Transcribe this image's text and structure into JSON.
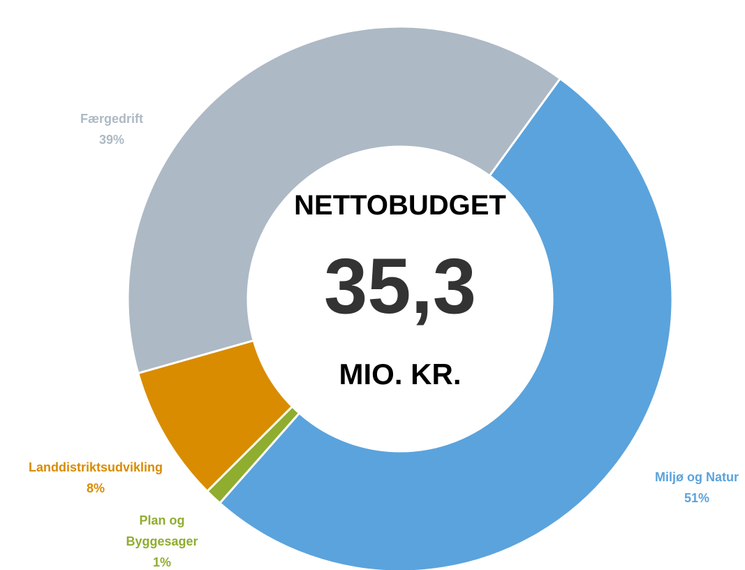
{
  "chart_data": {
    "type": "donut",
    "center_title": "NETTOBUDGET",
    "center_value": "35,3",
    "center_unit": "MIO. KR.",
    "categories": [
      "Miljø og Natur",
      "Plan og Byggesager",
      "Landdistriktsudvikling",
      "Færgedrift"
    ],
    "values": [
      51,
      1,
      8,
      39
    ],
    "value_labels": [
      "51%",
      "1%",
      "8%",
      "39%"
    ],
    "colors": [
      "#5ba3dc",
      "#8fad2f",
      "#d98c00",
      "#adb9c5"
    ]
  }
}
